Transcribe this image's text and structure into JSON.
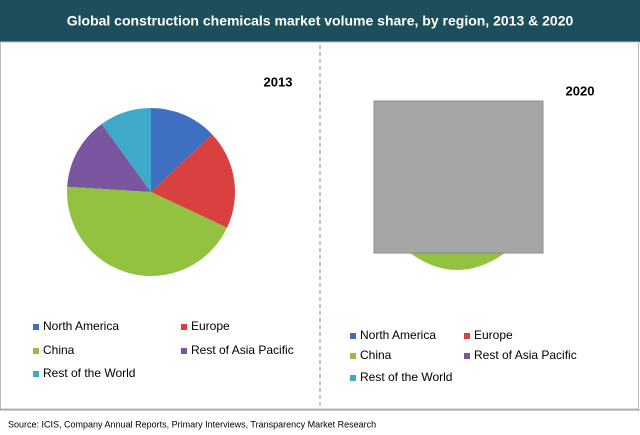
{
  "title": "Global construction chemicals market volume share, by region, 2013 & 2020",
  "source": "Source: ICIS, Company Annual Reports, Primary Interviews, Transparency Market Research",
  "chart_data": [
    {
      "type": "pie",
      "title": "2013",
      "categories": [
        "North America",
        "Europe",
        "China",
        "Rest of Asia Pacific",
        "Rest of the World"
      ],
      "colors": [
        "#3f6fc0",
        "#d94040",
        "#92c240",
        "#7a55a0",
        "#3fa9c9"
      ],
      "values": [
        13,
        19,
        44,
        14,
        10
      ]
    },
    {
      "type": "pie",
      "title": "2020",
      "categories": [
        "North America",
        "Europe",
        "China",
        "Rest of Asia Pacific",
        "Rest of the World"
      ],
      "colors": [
        "#3f6fc0",
        "#d94040",
        "#92c240",
        "#7a55a0",
        "#3fa9c9"
      ]
    }
  ]
}
